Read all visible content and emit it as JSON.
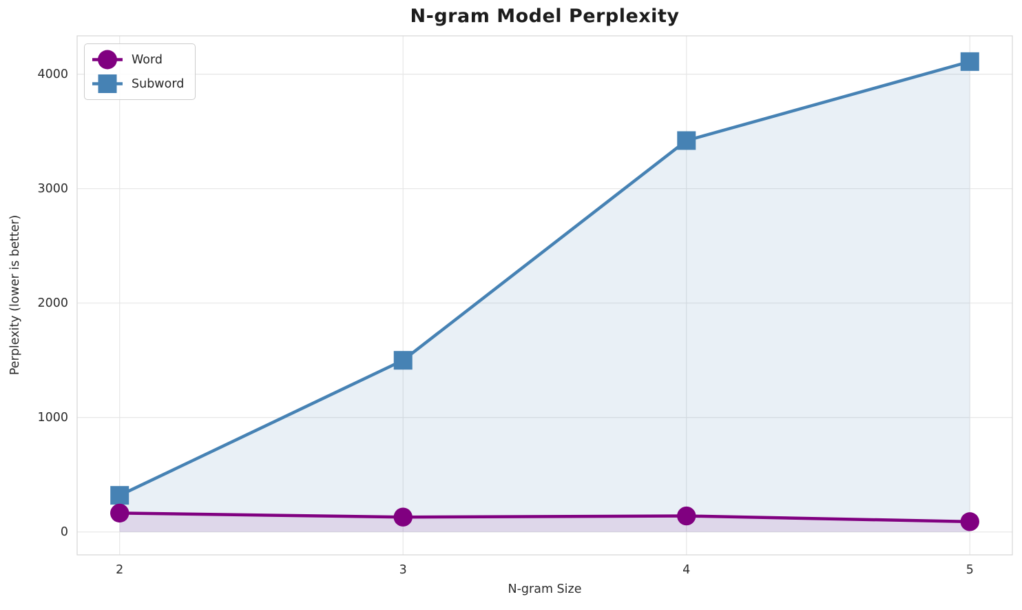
{
  "figure": {
    "background": "#ffffff",
    "grid_color": "#e6e6e6",
    "spine_color": "#d8d8d8",
    "text_color": "#262626"
  },
  "chart_data": {
    "type": "line",
    "title": "N-gram Model Perplexity",
    "xlabel": "N-gram Size",
    "ylabel": "Perplexity (lower is better)",
    "x": [
      2,
      3,
      4,
      5
    ],
    "x_tick_labels": [
      "2",
      "3",
      "4",
      "5"
    ],
    "y_tick_values": [
      0,
      1000,
      2000,
      3000,
      4000
    ],
    "y_tick_labels": [
      "0",
      "1000",
      "2000",
      "3000",
      "4000"
    ],
    "xlim": [
      1.85,
      5.15
    ],
    "ylim": [
      -200,
      4335
    ],
    "grid": true,
    "legend_position": "upper left",
    "series": [
      {
        "name": "Word",
        "color": "#800080",
        "marker": "circle",
        "values": [
          165,
          130,
          140,
          90
        ],
        "area_alpha": 0.1
      },
      {
        "name": "Subword",
        "color": "#4682B4",
        "marker": "square",
        "values": [
          320,
          1500,
          3420,
          4110
        ],
        "area_alpha": 0.12
      }
    ]
  }
}
